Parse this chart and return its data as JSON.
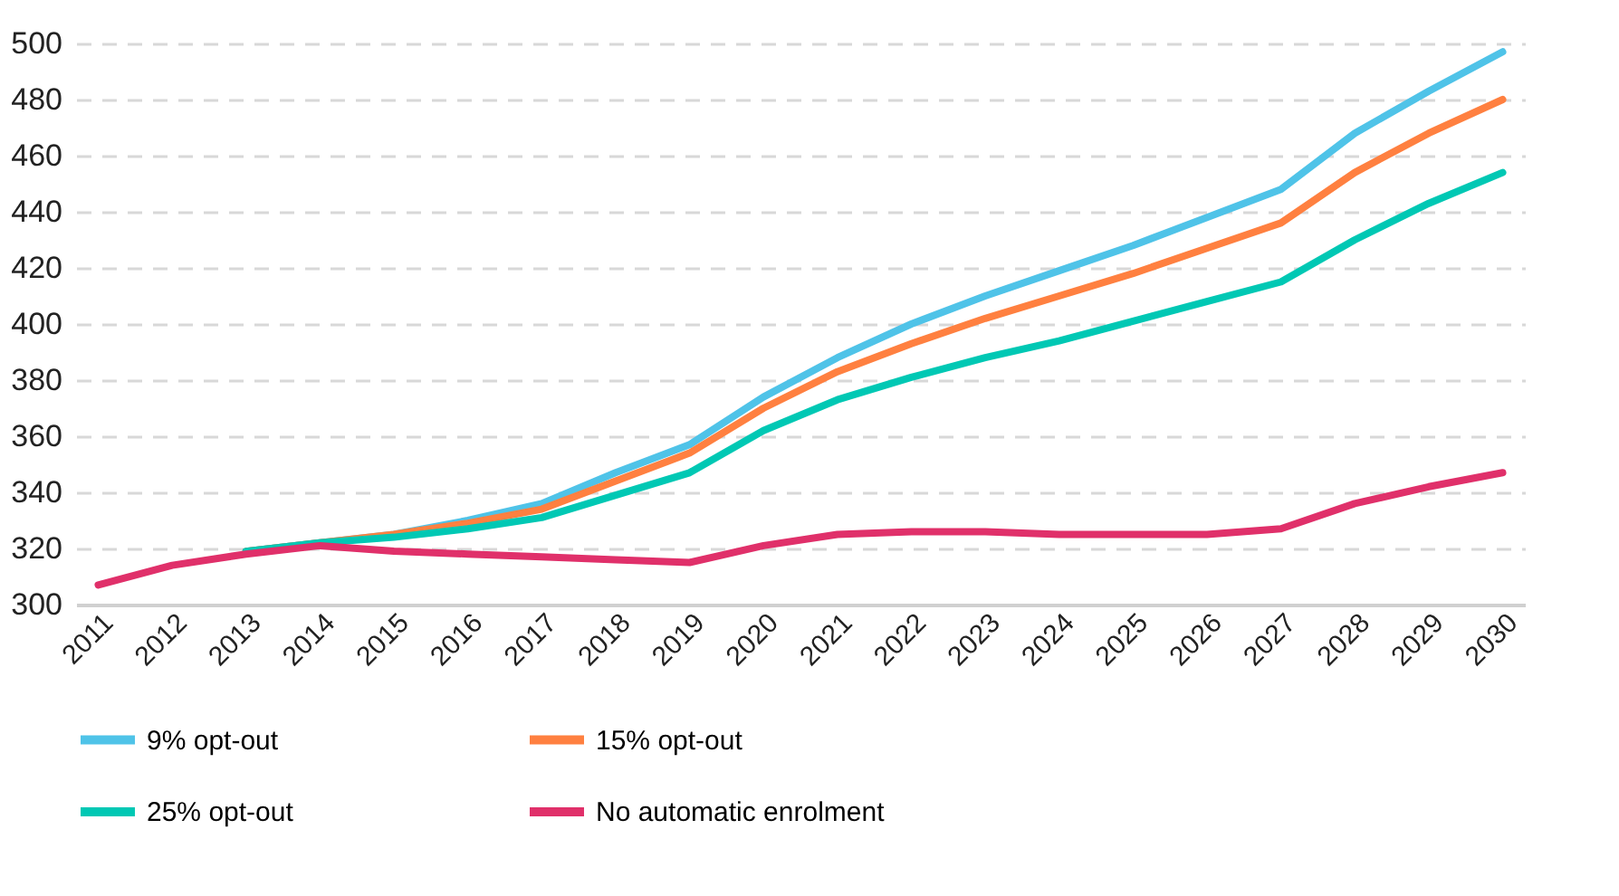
{
  "chart_data": {
    "type": "line",
    "categories": [
      "2011",
      "2012",
      "2013",
      "2014",
      "2015",
      "2016",
      "2017",
      "2018",
      "2019",
      "2020",
      "2021",
      "2022",
      "2023",
      "2024",
      "2025",
      "2026",
      "2027",
      "2028",
      "2029",
      "2030"
    ],
    "series": [
      {
        "name": "9% opt-out",
        "color": "#4fc3e8",
        "values": [
          null,
          null,
          319,
          322,
          325,
          330,
          336,
          347,
          357,
          374,
          388,
          400,
          410,
          419,
          428,
          438,
          448,
          468,
          483,
          497
        ]
      },
      {
        "name": "15% opt-out",
        "color": "#ff8040",
        "values": [
          null,
          null,
          319,
          322,
          325,
          329,
          334,
          344,
          354,
          370,
          383,
          393,
          402,
          410,
          418,
          427,
          436,
          454,
          468,
          480
        ]
      },
      {
        "name": "25% opt-out",
        "color": "#00c8b4",
        "values": [
          null,
          null,
          319,
          322,
          324,
          327,
          331,
          339,
          347,
          362,
          373,
          381,
          388,
          394,
          401,
          408,
          415,
          430,
          443,
          454
        ]
      },
      {
        "name": "No automatic enrolment",
        "color": "#e0306a",
        "values": [
          307,
          314,
          318,
          321,
          319,
          318,
          317,
          316,
          315,
          321,
          325,
          326,
          326,
          325,
          325,
          325,
          327,
          336,
          342,
          347
        ]
      }
    ],
    "ylim": [
      300,
      500
    ],
    "yticks": [
      300,
      320,
      340,
      360,
      380,
      400,
      420,
      440,
      460,
      480,
      500
    ],
    "grid": "y",
    "legend": "bottom",
    "marker": "none",
    "line_style": "solid"
  }
}
